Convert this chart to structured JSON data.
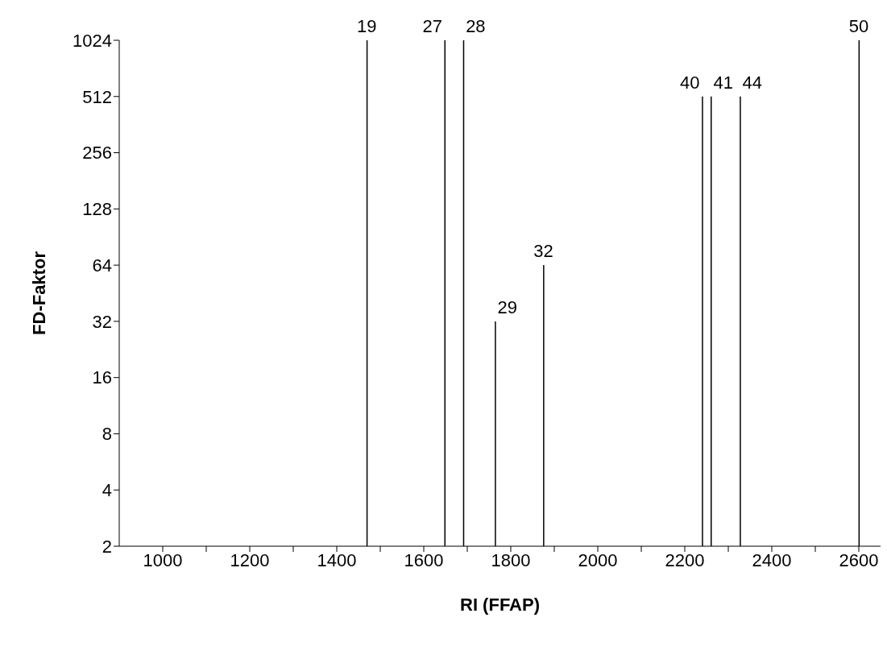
{
  "chart_data": {
    "type": "bar",
    "xlabel": "RI (FFAP)",
    "ylabel": "FD-Faktor",
    "x": [
      1469,
      1648,
      1691,
      1764,
      1875,
      2240,
      2260,
      2327,
      2600
    ],
    "values": [
      1024,
      1024,
      1024,
      32,
      64,
      512,
      512,
      512,
      1024
    ],
    "color": "#000000",
    "log": "y",
    "xlim": [
      900,
      2650
    ],
    "xticks": [
      1000,
      {
        "value": 1100,
        "label": null
      },
      1200,
      {
        "value": 1300,
        "label": null
      },
      1400,
      {
        "value": 1500,
        "label": null
      },
      1600,
      {
        "value": 1700,
        "label": null
      },
      1800,
      {
        "value": 1900,
        "label": null
      },
      2000,
      {
        "value": 2100,
        "label": null
      },
      2200,
      {
        "value": 2300,
        "label": null
      },
      2400,
      {
        "value": 2500,
        "label": null
      },
      2600
    ],
    "ylim": [
      2,
      1024
    ],
    "yticks": [
      2,
      4,
      8,
      16,
      32,
      64,
      128,
      256,
      512,
      1024
    ],
    "annotations": [
      {
        "text": "19",
        "x": 1469,
        "y": 1024
      },
      {
        "text": "27",
        "x": 1648,
        "y": 1024
      },
      {
        "text": "28",
        "x": 1691,
        "y": 1024
      },
      {
        "text": "29",
        "x": 1764,
        "y": 32
      },
      {
        "text": "32",
        "x": 1875,
        "y": 64
      },
      {
        "text": "40",
        "x": 2240,
        "y": 512
      },
      {
        "text": "41",
        "x": 2260,
        "y": 512
      },
      {
        "text": "44",
        "x": 2327,
        "y": 512
      },
      {
        "text": "50",
        "x": 2600,
        "y": 1024
      }
    ]
  }
}
